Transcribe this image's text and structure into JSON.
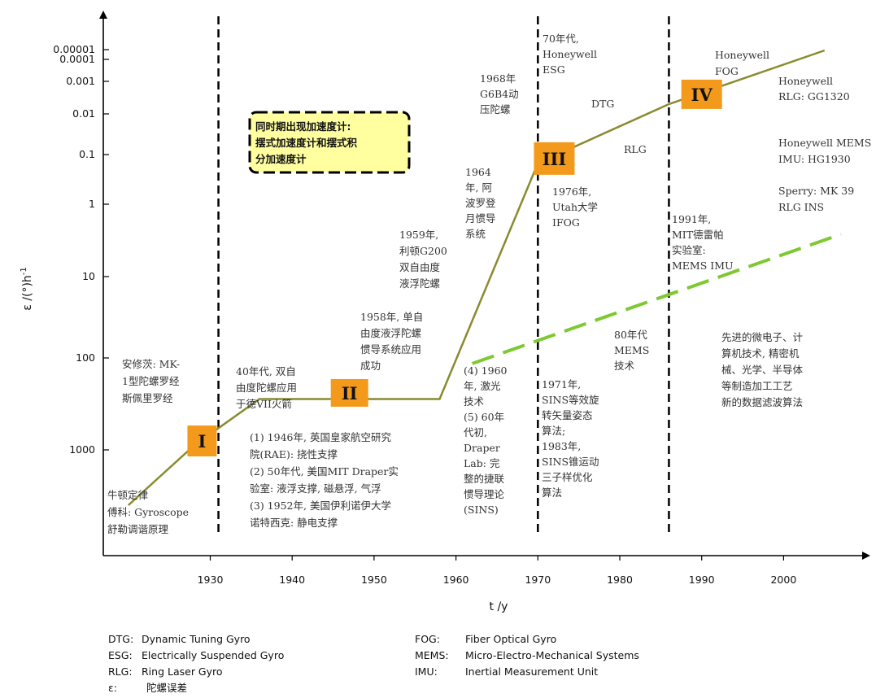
{
  "colors": {
    "trend": "#8a8a2e",
    "mems": "#7ec832",
    "era_box": "#f39a1c",
    "note_fill": "#ffffa0",
    "axis": "#000000"
  },
  "chart_data": {
    "type": "line",
    "xlabel": "t /y",
    "ylabel": "ε /(°)h",
    "ylabel_superscript": "-1",
    "xlim": [
      1918,
      2012
    ],
    "x_ticks": [
      1930,
      1940,
      1950,
      1960,
      1970,
      1980,
      1990,
      2000
    ],
    "y_ticks": [
      "0.00001",
      "0.0001",
      "0.001",
      "0.01",
      "0.1",
      "1",
      "10",
      "100",
      "1000"
    ],
    "y_scale": "log, decreasing upward",
    "era_dividers": [
      1931,
      1970,
      1986
    ],
    "series": [
      {
        "style": "solid",
        "points": [
          [
            1920,
            4000
          ],
          [
            1928,
            900
          ],
          [
            1936,
            280
          ],
          [
            1958,
            280
          ],
          [
            1970,
            0.15
          ],
          [
            1986,
            0.005
          ],
          [
            2005,
            1.2e-05
          ]
        ]
      },
      {
        "style": "dashed",
        "points": [
          [
            1962,
            115
          ],
          [
            2007,
            2.6
          ]
        ]
      }
    ],
    "eras": [
      {
        "label": "I",
        "x": 1929,
        "y": 800
      },
      {
        "label": "II",
        "x": 1947,
        "y": 240
      },
      {
        "label": "III",
        "x": 1972,
        "y": 0.12
      },
      {
        "label": "IV",
        "x": 1990,
        "y": 0.0025
      }
    ],
    "note": [
      "同时期出现加速度计:",
      "摆式加速度计和摆式积",
      "分加速度计"
    ],
    "annotations": [
      {
        "id": "newton",
        "lines": [
          "牛顿定律",
          "傅科: Gyroscope",
          "舒勒调谐原理"
        ]
      },
      {
        "id": "anschutz",
        "lines": [
          "安修茨: MK-",
          "1型陀螺罗经",
          "斯佩里罗经"
        ]
      },
      {
        "id": "1940s",
        "lines": [
          "40年代, 双自",
          "由度陀螺应用",
          "于德VII火箭"
        ]
      },
      {
        "id": "supports",
        "lines": [
          "(1) 1946年, 英国皇家航空研究",
          "院(RAE): 挠性支撑",
          "(2) 50年代, 美国MIT Draper实",
          "验室: 液浮支撑, 磁悬浮, 气浮",
          "(3) 1952年, 美国伊利诺伊大学",
          "诺特西克: 静电支撑"
        ]
      },
      {
        "id": "1958",
        "lines": [
          "1958年, 单自",
          "由度液浮陀螺",
          "惯导系统应用",
          "成功"
        ]
      },
      {
        "id": "1959",
        "lines": [
          "1959年,",
          "利顿G200",
          "双自由度",
          "液浮陀螺"
        ]
      },
      {
        "id": "1964",
        "lines": [
          "1964",
          "年, 阿",
          "波罗登",
          "月惯导",
          "系统"
        ]
      },
      {
        "id": "1968",
        "lines": [
          "1968年",
          "G6B4动",
          "压陀螺"
        ]
      },
      {
        "id": "laser",
        "lines": [
          "(4) 1960",
          "年, 激光",
          "技术",
          "(5) 60年",
          "代初,",
          "Draper",
          "Lab: 完",
          "整的捷联",
          "惯导理论",
          "(SINS)"
        ]
      },
      {
        "id": "1970s",
        "lines": [
          "70年代,",
          "Honeywell",
          "ESG"
        ]
      },
      {
        "id": "dtg",
        "lines": [
          "DTG"
        ]
      },
      {
        "id": "rlg",
        "lines": [
          "RLG"
        ]
      },
      {
        "id": "1976",
        "lines": [
          "1976年,",
          "Utah大学",
          "IFOG"
        ]
      },
      {
        "id": "1971",
        "lines": [
          "1971年,",
          "SINS等效旋",
          "转矢量姿态",
          "算法;",
          "1983年,",
          "SINS锥运动",
          "三子样优化",
          "算法"
        ]
      },
      {
        "id": "80s",
        "lines": [
          "80年代",
          "MEMS",
          "技术"
        ]
      },
      {
        "id": "1991",
        "lines": [
          "1991年,",
          "MIT德雷帕",
          "实验室:",
          "MEMS IMU"
        ]
      },
      {
        "id": "hw-fog",
        "lines": [
          "Honeywell",
          "FOG"
        ]
      },
      {
        "id": "hw-rlg",
        "lines": [
          "Honeywell",
          "RLG: GG1320"
        ]
      },
      {
        "id": "hw-mems",
        "lines": [
          "Honeywell MEMS",
          "IMU: HG1930"
        ]
      },
      {
        "id": "sperry",
        "lines": [
          "Sperry: MK 39",
          "RLG INS"
        ]
      },
      {
        "id": "advanced",
        "lines": [
          "先进的微电子、计",
          "算机技术, 精密机",
          "械、光学、半导体",
          "等制造加工工艺",
          "",
          "新的数据滤波算法"
        ]
      }
    ]
  },
  "glossary": [
    {
      "abbr": "DTG:",
      "def": "Dynamic Tuning Gyro"
    },
    {
      "abbr": "ESG:",
      "def": "Electrically Suspended Gyro"
    },
    {
      "abbr": "RLG:",
      "def": "Ring Laser Gyro"
    },
    {
      "abbr": "ε:",
      "def": "陀螺误差"
    },
    {
      "abbr": "FOG:",
      "def": "Fiber Optical Gyro"
    },
    {
      "abbr": "MEMS:",
      "def": "Micro-Electro-Mechanical Systems"
    },
    {
      "abbr": "IMU:",
      "def": "Inertial Measurement Unit"
    }
  ]
}
